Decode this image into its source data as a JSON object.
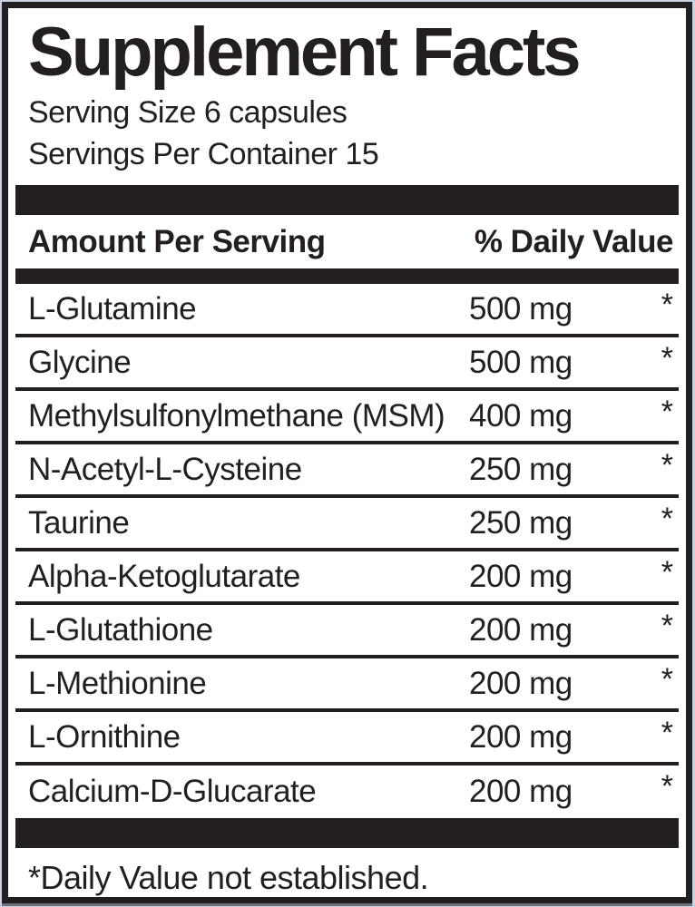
{
  "label": {
    "title": "Supplement Facts",
    "serving_size": "Serving Size 6 capsules",
    "servings_per_container": "Servings Per Container 15",
    "header": {
      "amount_column": "Amount Per Serving",
      "dv_column": "% Daily Value"
    },
    "rows": [
      {
        "name": "L-Glutamine",
        "amount": "500 mg",
        "dv": "*"
      },
      {
        "name": "Glycine",
        "amount": "500 mg",
        "dv": "*"
      },
      {
        "name": "Methylsulfonylmethane (MSM)",
        "amount": "400 mg",
        "dv": "*"
      },
      {
        "name": "N-Acetyl-L-Cysteine",
        "amount": "250 mg",
        "dv": "*"
      },
      {
        "name": "Taurine",
        "amount": "250 mg",
        "dv": "*"
      },
      {
        "name": "Alpha-Ketoglutarate",
        "amount": "200 mg",
        "dv": "*"
      },
      {
        "name": "L-Glutathione",
        "amount": "200 mg",
        "dv": "*"
      },
      {
        "name": "L-Methionine",
        "amount": "200 mg",
        "dv": "*"
      },
      {
        "name": "L-Ornithine",
        "amount": "200 mg",
        "dv": "*"
      },
      {
        "name": "Calcium-D-Glucarate",
        "amount": "200 mg",
        "dv": "*"
      }
    ],
    "footnote": "*Daily Value not established.",
    "colors": {
      "ink": "#231f20",
      "panel_background": "#ffffff",
      "page_background": "#c9d3e2"
    }
  }
}
